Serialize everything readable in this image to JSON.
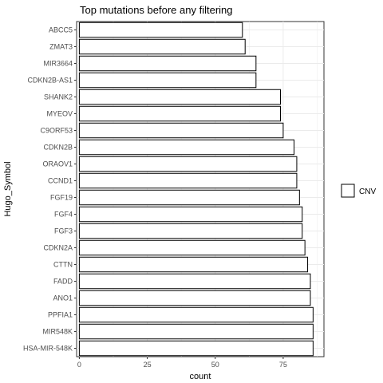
{
  "chart_data": {
    "type": "bar",
    "orientation": "horizontal",
    "title": "Top mutations before any filtering",
    "xlabel": "count",
    "ylabel": "Hugo_Symbol",
    "xlim": [
      -1,
      90
    ],
    "x_ticks": [
      0,
      25,
      50,
      75
    ],
    "grid": true,
    "bar_fill": "#ffffff",
    "bar_stroke": "#000000",
    "grid_color": "#ebebeb",
    "legend": {
      "position": "right",
      "entries": [
        "CNV"
      ]
    },
    "categories": [
      "ABCC5",
      "ZMAT3",
      "MIR3664",
      "CDKN2B-AS1",
      "SHANK2",
      "MYEOV",
      "C9ORF53",
      "CDKN2B",
      "ORAOV1",
      "CCND1",
      "FGF19",
      "FGF4",
      "FGF3",
      "CDKN2A",
      "CTTN",
      "FADD",
      "ANO1",
      "PPFIA1",
      "MIR548K",
      "HSA-MIR-548K"
    ],
    "values": [
      60,
      61,
      65,
      65,
      74,
      74,
      75,
      79,
      80,
      80,
      81,
      82,
      82,
      83,
      84,
      85,
      85,
      86,
      86,
      86
    ]
  }
}
